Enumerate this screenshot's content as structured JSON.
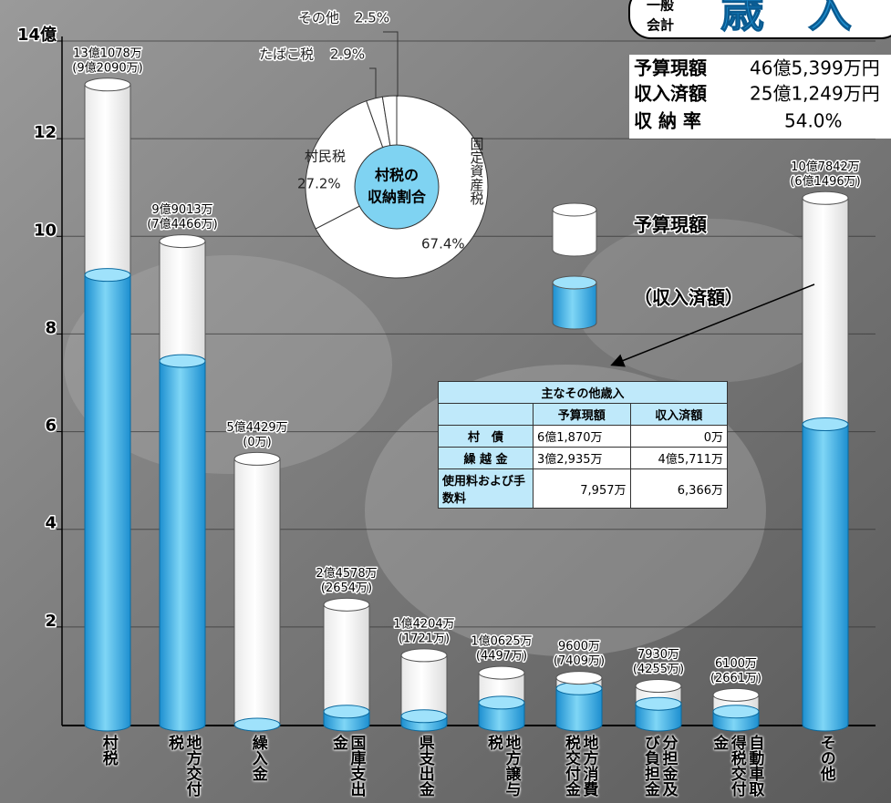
{
  "header": {
    "label_lines": [
      "一般",
      "会計"
    ],
    "title": "歳　入"
  },
  "summary": {
    "rows": [
      [
        "予算現額",
        "46億5,399万円"
      ],
      [
        "収入済額",
        "25億1,249万円"
      ],
      [
        "収 納 率",
        "54.0%"
      ]
    ]
  },
  "chart_data": [
    {
      "type": "bar",
      "categories": [
        "村税",
        "地方交付税",
        "繰入金",
        "国庫支出金",
        "県支出金",
        "地方譲与税",
        "地方消費税交付金",
        "分担金及び負担金",
        "自動車取得税交付金",
        "その他"
      ],
      "series": [
        {
          "name": "予算現額",
          "color": "#ffffff",
          "values": [
            13.1078,
            9.9013,
            5.4429,
            2.4578,
            1.4204,
            1.0625,
            0.96,
            0.793,
            0.61,
            10.7842
          ],
          "value_labels": [
            "13億1078万",
            "9億9013万",
            "5億4429万",
            "2億4578万",
            "1億4204万",
            "1億0625万",
            "9600万",
            "7930万",
            "6100万",
            "10億7842万"
          ]
        },
        {
          "name": "（収入済額）",
          "color": "#33bbee",
          "values": [
            9.209,
            7.4466,
            0,
            0.2654,
            0.1721,
            0.4497,
            0.7409,
            0.4255,
            0.2661,
            6.1496
          ],
          "value_labels": [
            "(9億2090万)",
            "(7億4466万)",
            "(0万)",
            "(2654万)",
            "(1721万)",
            "(4497万)",
            "(7409万)",
            "(4255万)",
            "(2661万)",
            "(6億1496万)"
          ]
        }
      ],
      "ylim": [
        0,
        14
      ],
      "yticks": [
        2,
        4,
        6,
        8,
        10,
        12,
        {
          "value": 14,
          "label": "14億"
        }
      ],
      "grid": true
    },
    {
      "type": "pie",
      "title_lines": [
        "村税の",
        "収納割合"
      ],
      "categories": [
        "固定資産税",
        "村民税",
        "たばこ税",
        "その他"
      ],
      "values": [
        67.4,
        27.2,
        2.9,
        2.5
      ],
      "value_labels": [
        "67.4%",
        "27.2%",
        "2.9%",
        "2.5%"
      ],
      "color": "#ffffff",
      "center_color": "#7fd3f2"
    }
  ],
  "table": {
    "title": "主なその他歳入",
    "header": [
      "予算現額",
      "収入済額"
    ],
    "rows": [
      [
        "村　債",
        "6億1,870万",
        "0万"
      ],
      [
        "繰 越 金",
        "3億2,935万",
        "4億5,711万"
      ],
      [
        "使用料および手数料",
        "7,957万",
        "6,366万"
      ]
    ]
  }
}
